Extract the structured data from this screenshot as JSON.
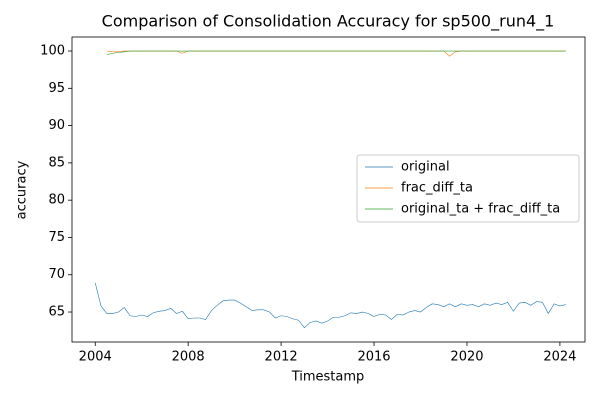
{
  "chart_data": {
    "type": "line",
    "title": "Comparison of Consolidation Accuracy for sp500_run4_1",
    "xlabel": "Timestamp",
    "ylabel": "accuracy",
    "xlim": [
      2003.0,
      2025.08
    ],
    "ylim": [
      60.98,
      101.88
    ],
    "xticks": [
      2004,
      2008,
      2012,
      2016,
      2020,
      2024
    ],
    "yticks": [
      65,
      70,
      75,
      80,
      85,
      90,
      95,
      100
    ],
    "legend": "center right",
    "series": [
      {
        "name": "original",
        "color": "#1f77b4",
        "x": [
          2004,
          2004.25,
          2004.5,
          2004.75,
          2005,
          2005.25,
          2005.5,
          2005.75,
          2006,
          2006.25,
          2006.5,
          2006.75,
          2007,
          2007.25,
          2007.5,
          2007.75,
          2008,
          2008.25,
          2008.5,
          2008.75,
          2009,
          2009.25,
          2009.5,
          2009.75,
          2010,
          2010.25,
          2010.5,
          2010.75,
          2011,
          2011.25,
          2011.5,
          2011.75,
          2012,
          2012.25,
          2012.5,
          2012.75,
          2013,
          2013.25,
          2013.5,
          2013.75,
          2014,
          2014.25,
          2014.5,
          2014.75,
          2015,
          2015.25,
          2015.5,
          2015.75,
          2016,
          2016.25,
          2016.5,
          2016.75,
          2017,
          2017.25,
          2017.5,
          2017.75,
          2018,
          2018.25,
          2018.5,
          2018.75,
          2019,
          2019.25,
          2019.5,
          2019.75,
          2020,
          2020.25,
          2020.5,
          2020.75,
          2021,
          2021.25,
          2021.5,
          2021.75,
          2022,
          2022.25,
          2022.5,
          2022.75,
          2023,
          2023.25,
          2023.5,
          2023.75,
          2024,
          2024.25
        ],
        "values": [
          68.9,
          65.8,
          64.8,
          64.8,
          65.0,
          65.6,
          64.5,
          64.4,
          64.6,
          64.4,
          64.9,
          65.1,
          65.2,
          65.5,
          64.8,
          65.1,
          64.1,
          64.2,
          64.2,
          64.0,
          65.2,
          65.9,
          66.5,
          66.6,
          66.6,
          66.2,
          65.7,
          65.2,
          65.3,
          65.3,
          65.0,
          64.2,
          64.5,
          64.4,
          64.1,
          63.9,
          62.9,
          63.6,
          63.8,
          63.5,
          63.8,
          64.3,
          64.3,
          64.5,
          64.9,
          64.8,
          65.0,
          64.8,
          64.4,
          64.7,
          64.6,
          64.0,
          64.7,
          64.6,
          65.0,
          65.2,
          65.0,
          65.6,
          66.1,
          66.0,
          65.7,
          66.1,
          65.7,
          66.1,
          65.9,
          66.0,
          65.7,
          66.1,
          65.9,
          66.2,
          66.0,
          66.3,
          65.1,
          66.2,
          66.3,
          65.9,
          66.4,
          66.3,
          64.8,
          66.1,
          65.8,
          66.0
        ]
      },
      {
        "name": "frac_diff_ta",
        "color": "#ff7f0e",
        "x": [
          2004.5,
          2004.75,
          2005,
          2005.25,
          2005.5,
          2005.75,
          2006,
          2006.25,
          2006.5,
          2006.75,
          2007,
          2007.25,
          2007.5,
          2007.75,
          2008,
          2008.25,
          2008.5,
          2008.75,
          2009,
          2009.25,
          2009.5,
          2009.75,
          2010,
          2010.25,
          2010.5,
          2010.75,
          2011,
          2011.25,
          2011.5,
          2011.75,
          2012,
          2012.25,
          2012.5,
          2012.75,
          2013,
          2013.25,
          2013.5,
          2013.75,
          2014,
          2014.25,
          2014.5,
          2014.75,
          2015,
          2015.25,
          2015.5,
          2015.75,
          2016,
          2016.25,
          2016.5,
          2016.75,
          2017,
          2017.25,
          2017.5,
          2017.75,
          2018,
          2018.25,
          2018.5,
          2018.75,
          2019,
          2019.25,
          2019.5,
          2019.75,
          2020,
          2020.25,
          2020.5,
          2020.75,
          2021,
          2021.25,
          2021.5,
          2021.75,
          2022,
          2022.25,
          2022.5,
          2022.75,
          2023,
          2023.25,
          2023.5,
          2023.75,
          2024,
          2024.25
        ],
        "values": [
          100,
          99.9,
          99.9,
          100,
          100,
          100,
          100,
          100,
          100,
          100,
          100,
          100,
          100,
          99.7,
          100,
          100,
          100,
          100,
          100,
          100,
          100,
          100,
          100,
          100,
          100,
          100,
          100,
          100,
          100,
          100,
          100,
          100,
          100,
          100,
          100,
          100,
          100,
          100,
          100,
          100,
          100,
          100,
          100,
          100,
          100,
          100,
          100,
          100,
          100,
          100,
          100,
          100,
          100,
          100,
          100,
          100,
          100,
          100,
          100,
          99.3,
          99.9,
          100,
          100,
          100,
          100,
          100,
          100,
          100,
          100,
          100,
          100,
          100,
          100,
          100,
          100,
          100,
          100,
          100,
          100,
          100
        ]
      },
      {
        "name": "original_ta + frac_diff_ta",
        "color": "#2ca02c",
        "x": [
          2004.5,
          2004.75,
          2005,
          2005.25,
          2005.5,
          2005.75,
          2006,
          2006.25,
          2006.5,
          2006.75,
          2007,
          2007.25,
          2007.5,
          2007.75,
          2008,
          2008.25,
          2008.5,
          2008.75,
          2009,
          2009.25,
          2009.5,
          2009.75,
          2010,
          2010.25,
          2010.5,
          2010.75,
          2011,
          2011.25,
          2011.5,
          2011.75,
          2012,
          2012.25,
          2012.5,
          2012.75,
          2013,
          2013.25,
          2013.5,
          2013.75,
          2014,
          2014.25,
          2014.5,
          2014.75,
          2015,
          2015.25,
          2015.5,
          2015.75,
          2016,
          2016.25,
          2016.5,
          2016.75,
          2017,
          2017.25,
          2017.5,
          2017.75,
          2018,
          2018.25,
          2018.5,
          2018.75,
          2019,
          2019.25,
          2019.5,
          2019.75,
          2020,
          2020.25,
          2020.5,
          2020.75,
          2021,
          2021.25,
          2021.5,
          2021.75,
          2022,
          2022.25,
          2022.5,
          2022.75,
          2023,
          2023.25,
          2023.5,
          2023.75,
          2024,
          2024.25
        ],
        "values": [
          99.5,
          99.7,
          99.8,
          99.9,
          100,
          100,
          100,
          100,
          100,
          100,
          100,
          100,
          100,
          100,
          100,
          100,
          100,
          100,
          100,
          100,
          100,
          100,
          100,
          100,
          100,
          100,
          100,
          100,
          100,
          100,
          100,
          100,
          100,
          100,
          100,
          100,
          100,
          100,
          100,
          100,
          100,
          100,
          100,
          100,
          100,
          100,
          100,
          100,
          100,
          100,
          100,
          100,
          100,
          100,
          100,
          100,
          100,
          100,
          100,
          100,
          100,
          100,
          100,
          100,
          100,
          100,
          100,
          100,
          100,
          100,
          100,
          100,
          100,
          100,
          100,
          100,
          100,
          100,
          100,
          100
        ]
      }
    ]
  }
}
